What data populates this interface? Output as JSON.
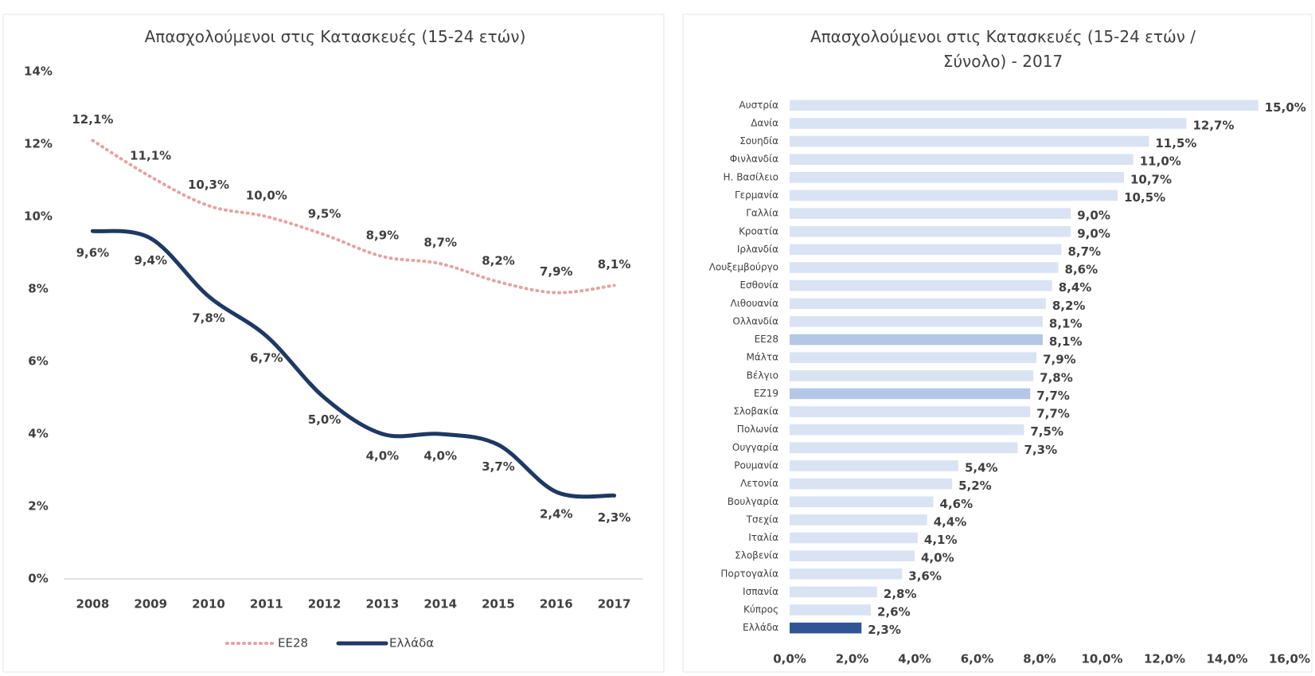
{
  "chart_data": [
    {
      "type": "line",
      "title": "Απασχολούμενοι στις Κατασκευές (15-24 ετών)",
      "categories": [
        "2008",
        "2009",
        "2010",
        "2011",
        "2012",
        "2013",
        "2014",
        "2015",
        "2016",
        "2017"
      ],
      "series": [
        {
          "name": "ΕΕ28",
          "color": "#e6a3a3",
          "dash": true,
          "values": [
            12.1,
            11.1,
            10.3,
            10.0,
            9.5,
            8.9,
            8.7,
            8.2,
            7.9,
            8.1
          ],
          "value_labels": [
            "12,1%",
            "11,1%",
            "10,3%",
            "10,0%",
            "9,5%",
            "8,9%",
            "8,7%",
            "8,2%",
            "7,9%",
            "8,1%"
          ]
        },
        {
          "name": "Ελλάδα",
          "color": "#1f3864",
          "dash": false,
          "values": [
            9.6,
            9.4,
            7.8,
            6.7,
            5.0,
            4.0,
            4.0,
            3.7,
            2.4,
            2.3
          ],
          "value_labels": [
            "9,6%",
            "9,4%",
            "7,8%",
            "6,7%",
            "5,0%",
            "4,0%",
            "4,0%",
            "3,7%",
            "2,4%",
            "2,3%"
          ]
        }
      ],
      "ylim": [
        0,
        14
      ],
      "yticks": [
        {
          "value": 0,
          "label": "0%"
        },
        {
          "value": 2,
          "label": "2%"
        },
        {
          "value": 4,
          "label": "4%"
        },
        {
          "value": 6,
          "label": "6%"
        },
        {
          "value": 8,
          "label": "8%"
        },
        {
          "value": 10,
          "label": "10%"
        },
        {
          "value": 12,
          "label": "12%"
        },
        {
          "value": 14,
          "label": "14%"
        }
      ],
      "legend": "bottom"
    },
    {
      "type": "hbar",
      "title": "Απασχολούμενοι στις Κατασκευές (15-24 ετών / Σύνολο) - 2017",
      "categories": [
        "Αυστρία",
        "Δανία",
        "Σουηδία",
        "Φινλανδία",
        "Η. Βασίλειο",
        "Γερμανία",
        "Γαλλία",
        "Κροατία",
        "Ιρλανδία",
        "Λουξεμβούργο",
        "Εσθονία",
        "Λιθουανία",
        "Ολλανδία",
        "ΕΕ28",
        "Μάλτα",
        "Βέλγιο",
        "ΕΖ19",
        "Σλοβακία",
        "Πολωνία",
        "Ουγγαρία",
        "Ρουμανία",
        "Λετονία",
        "Βουλγαρία",
        "Τσεχία",
        "Ιταλία",
        "Σλοβενία",
        "Πορτογαλία",
        "Ισπανία",
        "Κύπρος",
        "Ελλάδα"
      ],
      "values": [
        15.0,
        12.7,
        11.5,
        11.0,
        10.7,
        10.5,
        9.0,
        9.0,
        8.7,
        8.6,
        8.4,
        8.2,
        8.1,
        8.1,
        7.9,
        7.8,
        7.7,
        7.7,
        7.5,
        7.3,
        5.4,
        5.2,
        4.6,
        4.4,
        4.1,
        4.0,
        3.6,
        2.8,
        2.6,
        2.3
      ],
      "value_labels": [
        "15,0%",
        "12,7%",
        "11,5%",
        "11,0%",
        "10,7%",
        "10,5%",
        "9,0%",
        "9,0%",
        "8,7%",
        "8,6%",
        "8,4%",
        "8,2%",
        "8,1%",
        "8,1%",
        "7,9%",
        "7,8%",
        "7,7%",
        "7,7%",
        "7,5%",
        "7,3%",
        "5,4%",
        "5,2%",
        "4,6%",
        "4,4%",
        "4,1%",
        "4,0%",
        "3,6%",
        "2,8%",
        "2,6%",
        "2,3%"
      ],
      "colors": [
        "#dae3f3",
        "#dae3f3",
        "#dae3f3",
        "#dae3f3",
        "#dae3f3",
        "#dae3f3",
        "#dae3f3",
        "#dae3f3",
        "#dae3f3",
        "#dae3f3",
        "#dae3f3",
        "#dae3f3",
        "#dae3f3",
        "#b4c7e7",
        "#dae3f3",
        "#dae3f3",
        "#b4c7e7",
        "#dae3f3",
        "#dae3f3",
        "#dae3f3",
        "#dae3f3",
        "#dae3f3",
        "#dae3f3",
        "#dae3f3",
        "#dae3f3",
        "#dae3f3",
        "#dae3f3",
        "#dae3f3",
        "#dae3f3",
        "#2f5597"
      ],
      "xlim": [
        0,
        16
      ],
      "xticks": [
        {
          "value": 0,
          "label": "0,0%"
        },
        {
          "value": 2,
          "label": "2,0%"
        },
        {
          "value": 4,
          "label": "4,0%"
        },
        {
          "value": 6,
          "label": "6,0%"
        },
        {
          "value": 8,
          "label": "8,0%"
        },
        {
          "value": 10,
          "label": "10,0%"
        },
        {
          "value": 12,
          "label": "12,0%"
        },
        {
          "value": 14,
          "label": "14,0%"
        },
        {
          "value": 16,
          "label": "16,0%"
        }
      ]
    }
  ]
}
